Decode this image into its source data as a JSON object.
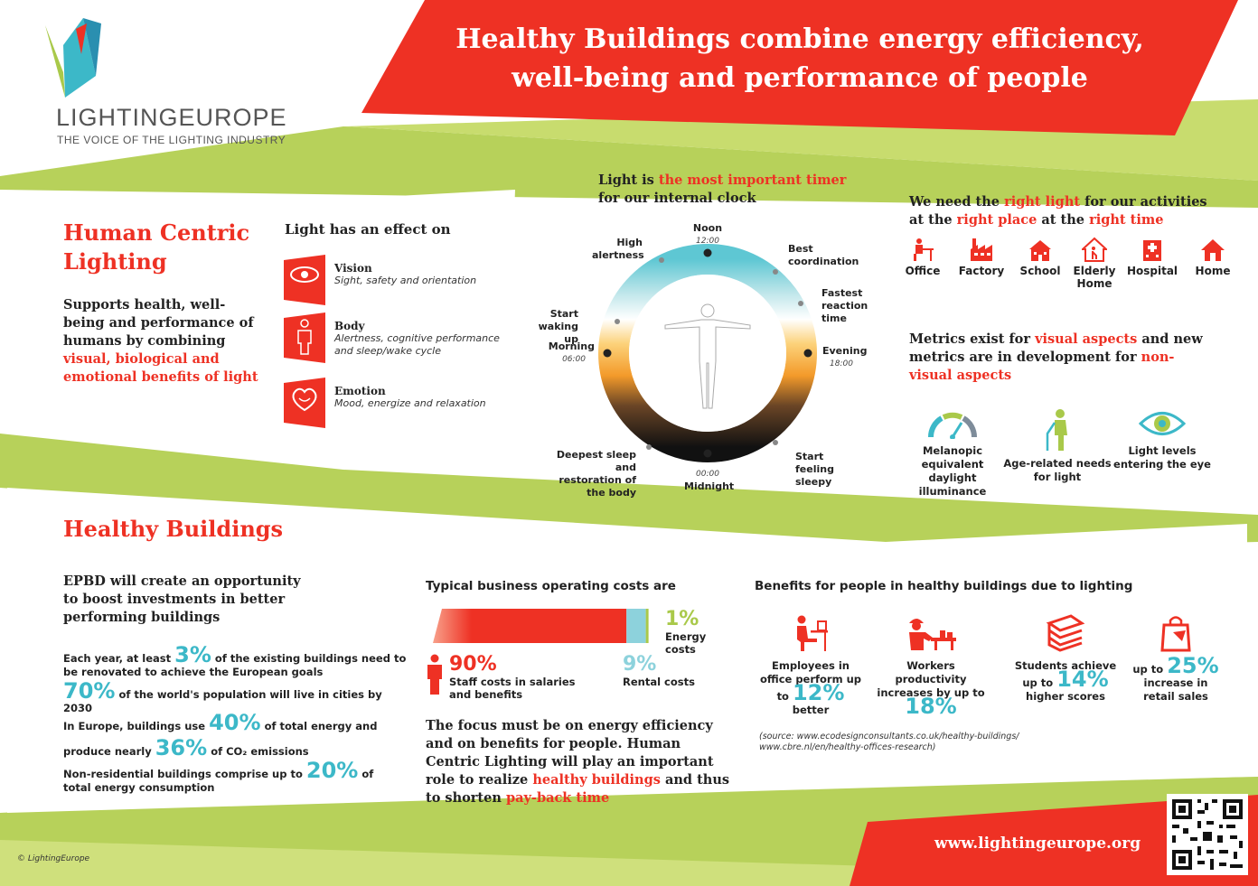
{
  "header": {
    "title_line1": "Healthy Buildings combine energy efficiency,",
    "title_line2": "well-being and performance of people"
  },
  "logo": {
    "name_bold": "LIGHTING",
    "name_light": "EUROPE",
    "tagline": "THE VOICE OF THE LIGHTING INDUSTRY"
  },
  "hcl": {
    "heading_line1": "Human Centric",
    "heading_line2": "Lighting",
    "desc_part1": "Supports health, well-being and performance of humans by combining",
    "desc_part2": "visual, biological and emotional benefits of light"
  },
  "effects": {
    "heading": "Light has an effect on",
    "items": [
      {
        "title": "Vision",
        "desc": "Sight, safety and orientation",
        "icon": "eye-icon"
      },
      {
        "title": "Body",
        "desc": "Alertness, cognitive performance and sleep/wake cycle",
        "icon": "body-icon"
      },
      {
        "title": "Emotion",
        "desc": "Mood, energize and relaxation",
        "icon": "heart-icon"
      }
    ]
  },
  "clock": {
    "heading_part1": "Light is",
    "heading_part2": "the most important timer",
    "heading_part3": "for our internal clock",
    "labels": {
      "noon": "Noon",
      "noon_time": "12:00",
      "high_alertness": "High alertness",
      "best_coordination": "Best coordination",
      "fastest_reaction": "Fastest reaction time",
      "evening": "Evening",
      "evening_time": "18:00",
      "start_sleepy": "Start feeling sleepy",
      "midnight": "Midnight",
      "midnight_time": "00:00",
      "deepest_sleep": "Deepest sleep and restoration of the body",
      "morning": "Morning",
      "morning_time": "06:00",
      "start_waking": "Start waking up"
    }
  },
  "places": {
    "heading_p1": "We need the",
    "heading_p2": "right light",
    "heading_p3": "for our activities at the",
    "heading_p4": "right place",
    "heading_p5": "at the",
    "heading_p6": "right time",
    "items": [
      {
        "label": "Office",
        "icon": "office-icon"
      },
      {
        "label": "Factory",
        "icon": "factory-icon"
      },
      {
        "label": "School",
        "icon": "school-icon"
      },
      {
        "label": "Elderly Home",
        "icon": "elderly-home-icon"
      },
      {
        "label": "Hospital",
        "icon": "hospital-icon"
      },
      {
        "label": "Home",
        "icon": "home-icon"
      }
    ]
  },
  "metrics": {
    "heading_p1": "Metrics exist for",
    "heading_p2": "visual aspects",
    "heading_p3": "and new metrics are in development for",
    "heading_p4": "non-visual aspects",
    "items": [
      {
        "label": "Melanopic equivalent daylight illuminance",
        "icon": "gauge-icon"
      },
      {
        "label": "Age-related needs for light",
        "icon": "elderly-person-icon"
      },
      {
        "label": "Light levels entering the eye",
        "icon": "eye-icon"
      }
    ]
  },
  "healthy": {
    "heading": "Healthy Buildings",
    "epbd": "EPBD will create an opportunity to boost investments in better performing buildings",
    "stat1_pre": "Each year, at least",
    "stat1_big": "3%",
    "stat1_post": "of the existing buildings need to be renovated to achieve the European goals",
    "stat2_big": "70%",
    "stat2_post": "of the world's population will live in cities by 2030",
    "stat3_pre": "In Europe, buildings use",
    "stat3_big": "40%",
    "stat3_mid": "of total energy and produce nearly",
    "stat3_big2": "36%",
    "stat3_post": "of CO₂ emissions",
    "stat4_pre": "Non-residential buildings comprise up to",
    "stat4_big": "20%",
    "stat4_post": "of total energy consumption"
  },
  "costs": {
    "heading": "Typical business operating costs are",
    "staff_pct": "90%",
    "staff_label": "Staff costs in salaries and benefits",
    "rental_pct": "9%",
    "rental_label": "Rental costs",
    "energy_pct": "1%",
    "energy_label": "Energy costs",
    "staff_value": 90,
    "rental_value": 9,
    "energy_value": 1,
    "focus_p1": "The focus must be on energy efficiency and on benefits for people. Human Centric Lighting will play an important role to realize",
    "focus_p2": "healthy buildings",
    "focus_p3": "and thus to shorten",
    "focus_p4": "pay-back time"
  },
  "benefits": {
    "heading": "Benefits for people in healthy buildings due to lighting",
    "items": [
      {
        "pre": "Employees in office perform up to",
        "big": "12%",
        "post": "better",
        "icon": "desk-worker-icon"
      },
      {
        "pre": "Workers productivity increases by up to",
        "big": "18%",
        "post": "",
        "icon": "factory-worker-icon"
      },
      {
        "pre": "Students achieve up to",
        "big": "14%",
        "post": "higher scores",
        "icon": "books-icon"
      },
      {
        "pre": "up to",
        "big": "25%",
        "post": "increase in retail sales",
        "icon": "shopping-bag-icon"
      }
    ],
    "source_line1": "(source: www.ecodesignconsultants.co.uk/healthy-buildings/",
    "source_line2": "www.cbre.nl/en/healthy-offices-research)"
  },
  "footer": {
    "copyright": "© LightingEurope",
    "url": "www.lightingeurope.org"
  },
  "colors": {
    "red": "#ee3124",
    "green": "#a9c94a",
    "teal": "#3cb8c8"
  }
}
